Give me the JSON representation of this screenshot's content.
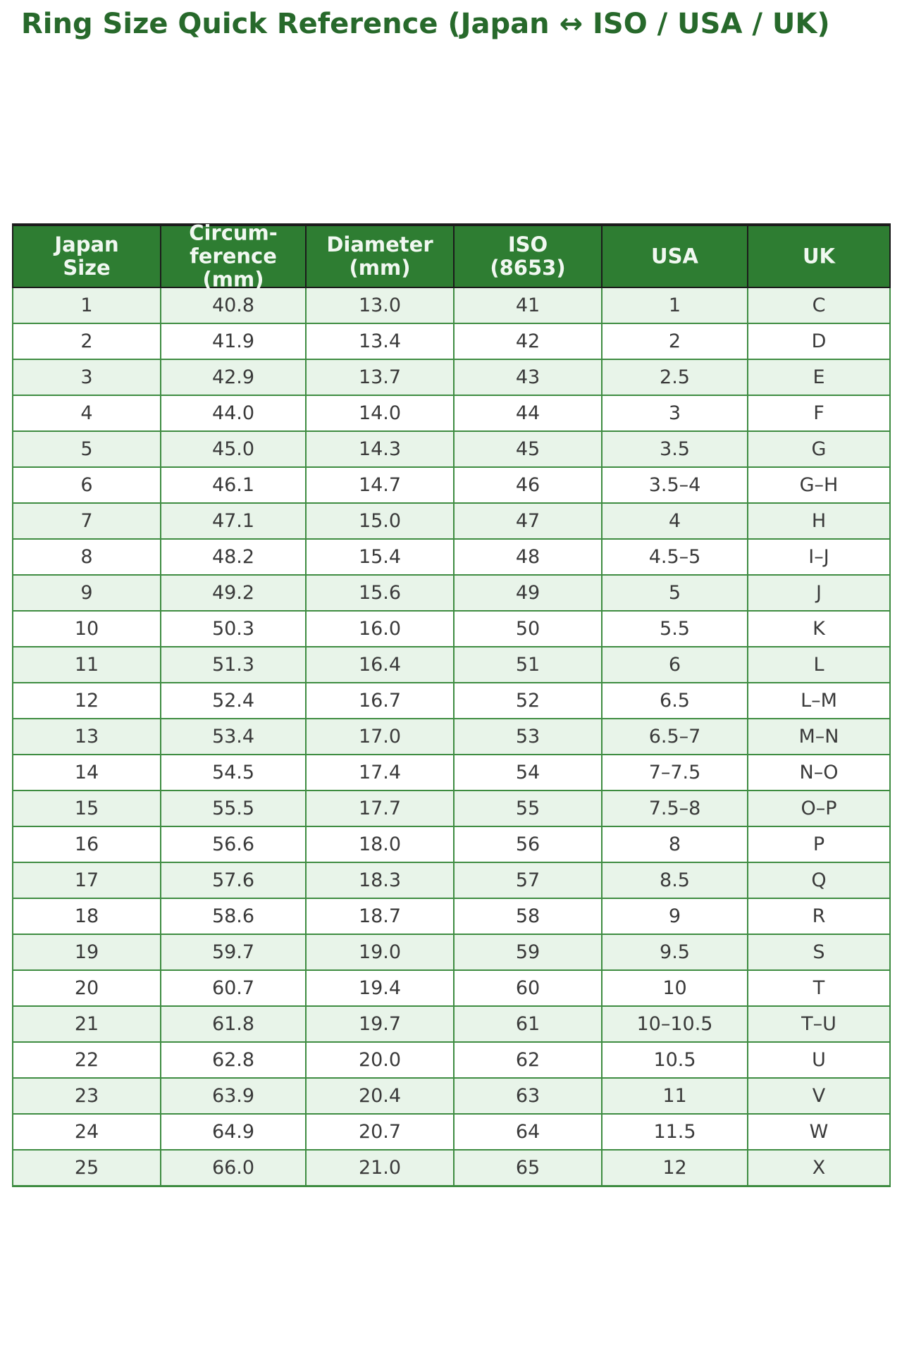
{
  "chart_data": {
    "type": "table",
    "title": "Ring Size Quick Reference (Japan ↔ ISO / USA / UK)",
    "columns": [
      {
        "id": "japan-size",
        "label": "Japan Size",
        "lines": [
          "Japan",
          "Size"
        ]
      },
      {
        "id": "circumference-mm",
        "label": "Circum-ference (mm)",
        "lines": [
          "Circum-",
          "ference",
          "(mm)"
        ]
      },
      {
        "id": "diameter-mm",
        "label": "Diameter (mm)",
        "lines": [
          "Diameter",
          "(mm)"
        ]
      },
      {
        "id": "iso-8653",
        "label": "ISO (8653)",
        "lines": [
          "ISO",
          "(8653)"
        ]
      },
      {
        "id": "usa",
        "label": "USA",
        "lines": [
          "USA"
        ]
      },
      {
        "id": "uk",
        "label": "UK",
        "lines": [
          "UK"
        ]
      }
    ],
    "rows": [
      [
        "1",
        "40.8",
        "13.0",
        "41",
        "1",
        "C"
      ],
      [
        "2",
        "41.9",
        "13.4",
        "42",
        "2",
        "D"
      ],
      [
        "3",
        "42.9",
        "13.7",
        "43",
        "2.5",
        "E"
      ],
      [
        "4",
        "44.0",
        "14.0",
        "44",
        "3",
        "F"
      ],
      [
        "5",
        "45.0",
        "14.3",
        "45",
        "3.5",
        "G"
      ],
      [
        "6",
        "46.1",
        "14.7",
        "46",
        "3.5–4",
        "G–H"
      ],
      [
        "7",
        "47.1",
        "15.0",
        "47",
        "4",
        "H"
      ],
      [
        "8",
        "48.2",
        "15.4",
        "48",
        "4.5–5",
        "I–J"
      ],
      [
        "9",
        "49.2",
        "15.6",
        "49",
        "5",
        "J"
      ],
      [
        "10",
        "50.3",
        "16.0",
        "50",
        "5.5",
        "K"
      ],
      [
        "11",
        "51.3",
        "16.4",
        "51",
        "6",
        "L"
      ],
      [
        "12",
        "52.4",
        "16.7",
        "52",
        "6.5",
        "L–M"
      ],
      [
        "13",
        "53.4",
        "17.0",
        "53",
        "6.5–7",
        "M–N"
      ],
      [
        "14",
        "54.5",
        "17.4",
        "54",
        "7–7.5",
        "N–O"
      ],
      [
        "15",
        "55.5",
        "17.7",
        "55",
        "7.5–8",
        "O–P"
      ],
      [
        "16",
        "56.6",
        "18.0",
        "56",
        "8",
        "P"
      ],
      [
        "17",
        "57.6",
        "18.3",
        "57",
        "8.5",
        "Q"
      ],
      [
        "18",
        "58.6",
        "18.7",
        "58",
        "9",
        "R"
      ],
      [
        "19",
        "59.7",
        "19.0",
        "59",
        "9.5",
        "S"
      ],
      [
        "20",
        "60.7",
        "19.4",
        "60",
        "10",
        "T"
      ],
      [
        "21",
        "61.8",
        "19.7",
        "61",
        "10–10.5",
        "T–U"
      ],
      [
        "22",
        "62.8",
        "20.0",
        "62",
        "10.5",
        "U"
      ],
      [
        "23",
        "63.9",
        "20.4",
        "63",
        "11",
        "V"
      ],
      [
        "24",
        "64.9",
        "20.7",
        "64",
        "11.5",
        "W"
      ],
      [
        "25",
        "66.0",
        "21.0",
        "65",
        "12",
        "X"
      ]
    ],
    "layout": {
      "grid": "on",
      "row_striping": "odd rows light green, even rows white"
    }
  },
  "colors": {
    "title_text": "#27692b",
    "header_bg": "#2e7d32",
    "header_text": "#f1f8f1",
    "header_border": "#1b1b1b",
    "row_even_bg": "#ffffff",
    "row_odd_bg": "#e8f4e9",
    "grid_border": "#3e8c41",
    "cell_text": "#3a3a3a",
    "page_bg": "#ffffff"
  }
}
